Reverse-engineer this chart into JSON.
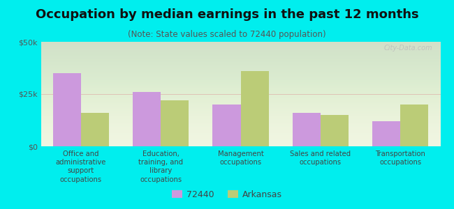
{
  "title": "Occupation by median earnings in the past 12 months",
  "subtitle": "(Note: State values scaled to 72440 population)",
  "background_color": "#00EEEE",
  "categories": [
    "Office and\nadministrative\nsupport\noccupations",
    "Education,\ntraining, and\nlibrary\noccupations",
    "Management\noccupations",
    "Sales and related\noccupations",
    "Transportation\noccupations"
  ],
  "values_72440": [
    35000,
    26000,
    20000,
    16000,
    12000
  ],
  "values_arkansas": [
    16000,
    22000,
    36000,
    15000,
    20000
  ],
  "bar_color_72440": "#cc99dd",
  "bar_color_arkansas": "#bbcc77",
  "ylim": [
    0,
    50000
  ],
  "yticks": [
    0,
    25000,
    50000
  ],
  "ytick_labels": [
    "$0",
    "$25k",
    "$50k"
  ],
  "legend_label_72440": "72440",
  "legend_label_arkansas": "Arkansas",
  "watermark": "City-Data.com",
  "title_fontsize": 13,
  "subtitle_fontsize": 8.5,
  "tick_fontsize": 8,
  "bar_width": 0.35
}
